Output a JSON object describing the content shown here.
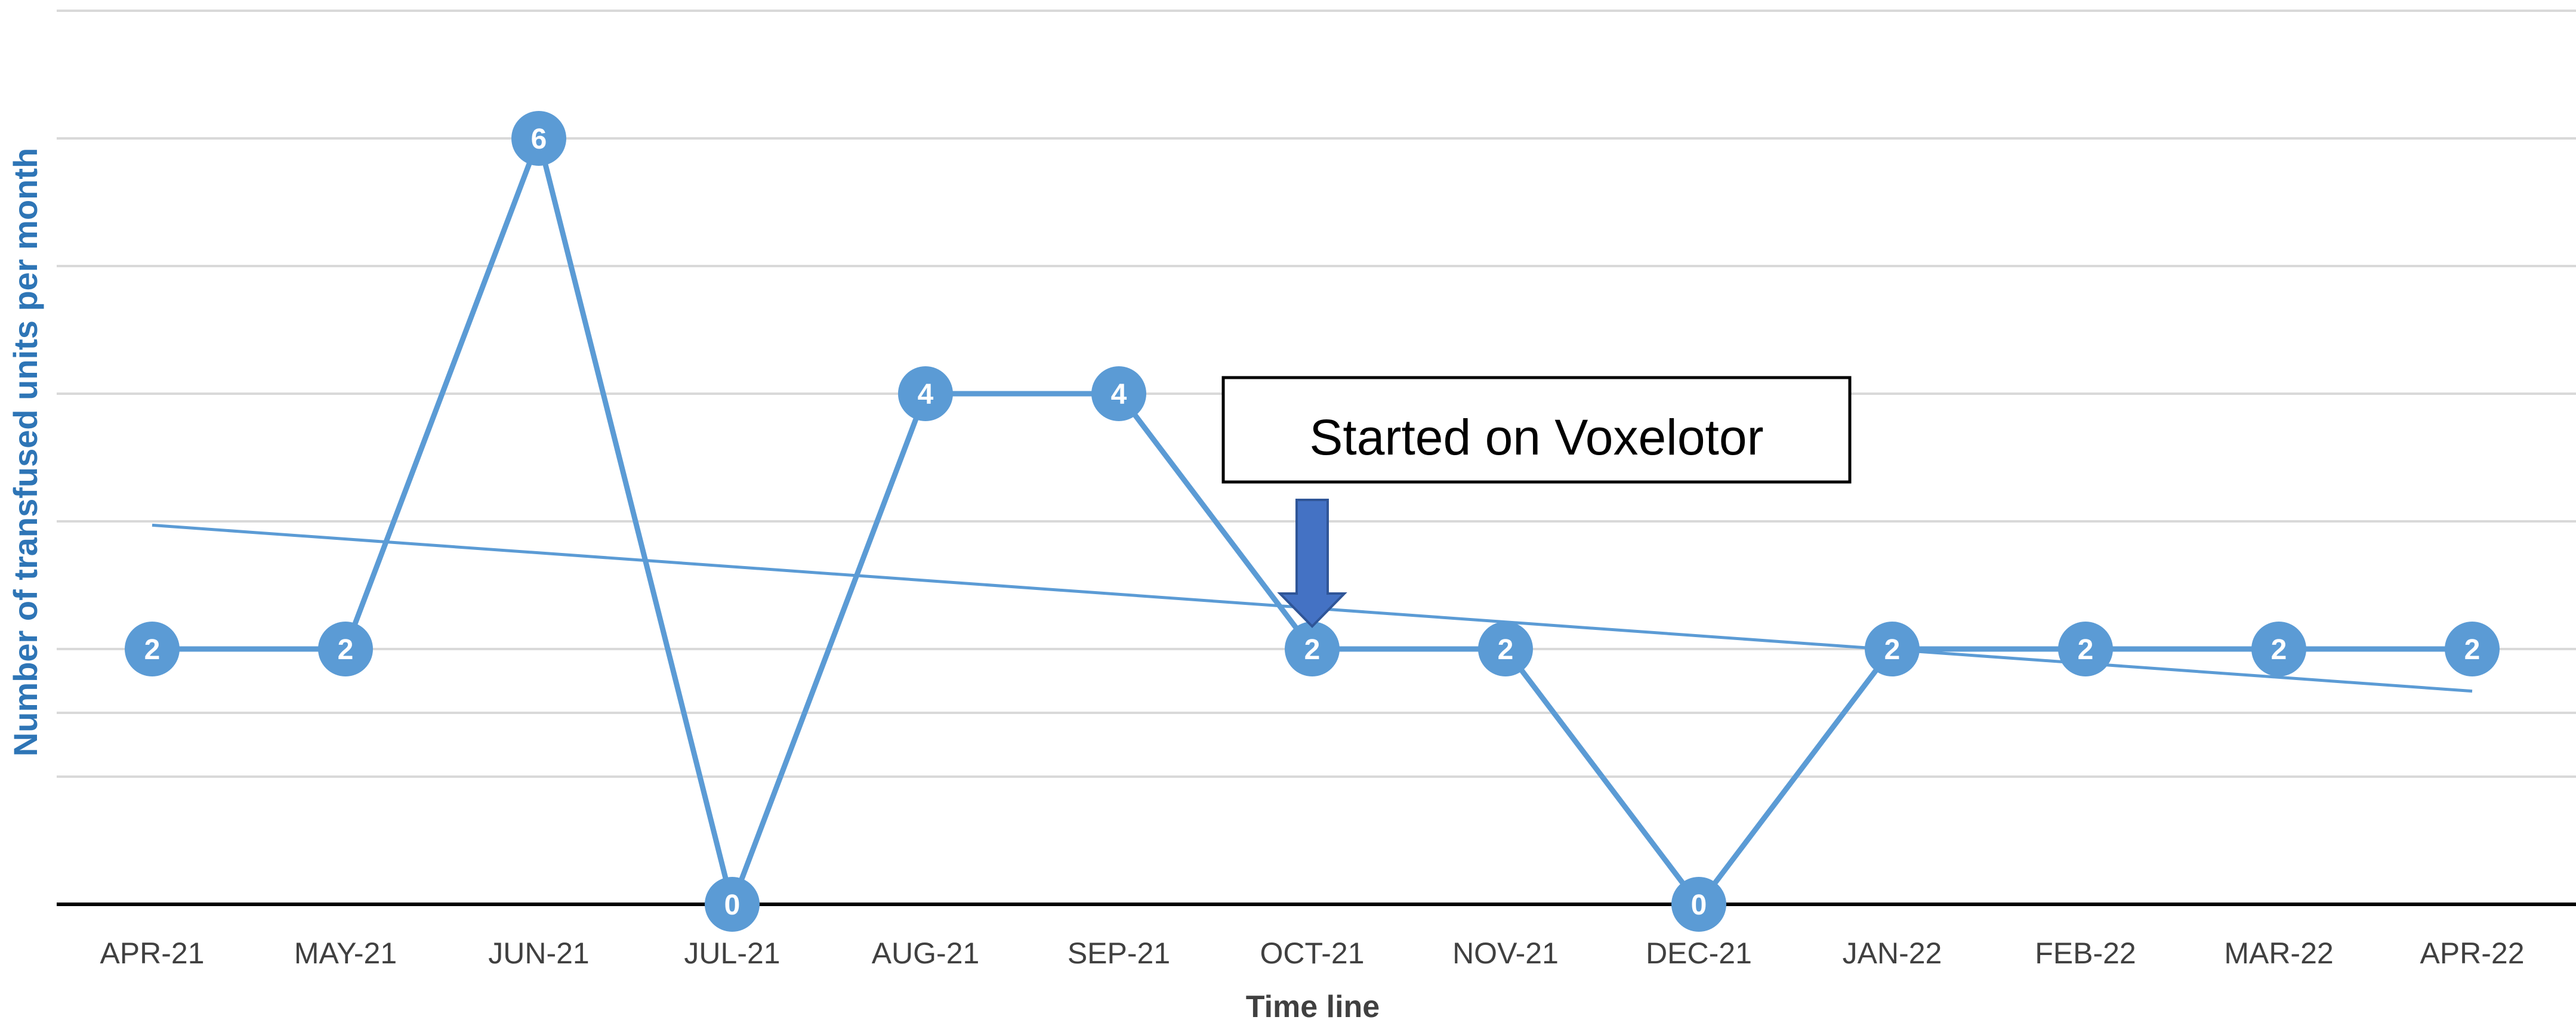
{
  "chart_data": {
    "type": "line",
    "title": "",
    "xlabel": "Time line",
    "ylabel": "Number of transfused units per month",
    "categories": [
      "APR-21",
      "MAY-21",
      "JUN-21",
      "JUL-21",
      "AUG-21",
      "SEP-21",
      "OCT-21",
      "NOV-21",
      "DEC-21",
      "JAN-22",
      "FEB-22",
      "MAR-22",
      "APR-22"
    ],
    "series": [
      {
        "values": [
          2,
          2,
          6,
          0,
          4,
          4,
          2,
          2,
          0,
          2,
          2,
          2,
          2
        ],
        "data_labels": [
          "2",
          "2",
          "6",
          "0",
          "4",
          "4",
          "2",
          "2",
          "0",
          "2",
          "2",
          "2",
          "2"
        ]
      }
    ],
    "trendline": {
      "type": "linear",
      "start_value": 2.97,
      "end_value": 1.67
    },
    "ylim": [
      0,
      7
    ],
    "ytick_labels_visible": false,
    "grid": true,
    "legend": "none",
    "annotation": {
      "text": "Started on Voxelotor",
      "at_category": "OCT-21",
      "marker": "down-arrow"
    },
    "colors": {
      "line": "#5b9bd5",
      "marker": "#5b9bd5",
      "trendline": "#5b9bd5",
      "gridline": "#d9d9d9",
      "axis": "#000000",
      "arrow": "#4472c4",
      "ylabel": "#2e75b6",
      "tick_text": "#404040"
    }
  }
}
